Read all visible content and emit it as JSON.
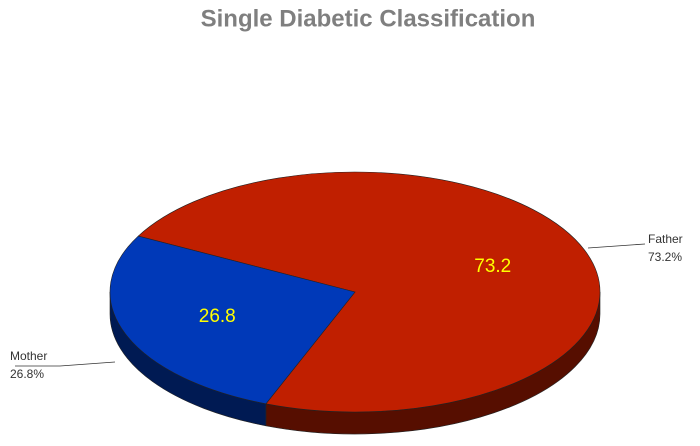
{
  "chart_data": {
    "type": "pie",
    "title": "Single Diabetic Classification",
    "categories": [
      "Father",
      "Mother"
    ],
    "values": [
      73.2,
      26.8
    ],
    "value_labels": [
      "73.2%",
      "26.8%"
    ],
    "colors": [
      "#c01f00",
      "#0039b8"
    ]
  }
}
